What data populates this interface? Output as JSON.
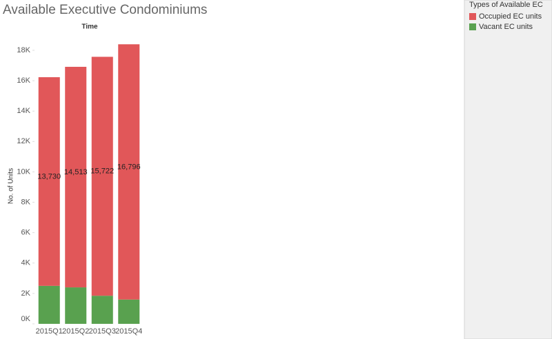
{
  "chart_data": {
    "type": "stacked_bar",
    "title": "Available Executive Condominiums",
    "header": "Time",
    "y_label": "No. of Units",
    "legend_title": "Types of Available EC",
    "categories": [
      "2015Q1",
      "2015Q2",
      "2015Q3",
      "2015Q4"
    ],
    "series": [
      {
        "name": "Vacant EC units",
        "color": "#59a14f",
        "values": [
          2500,
          2400,
          1850,
          1600
        ]
      },
      {
        "name": "Occupied EC units",
        "color": "#e15759",
        "values": [
          13730,
          14513,
          15722,
          16796
        ],
        "value_labels": [
          "13,730",
          "14,513",
          "15,722",
          "16,796"
        ]
      }
    ],
    "legend_order": [
      1,
      0
    ],
    "ylim": [
      0,
      18000
    ],
    "yticks": [
      {
        "value": 0,
        "label": "0K"
      },
      {
        "value": 2000,
        "label": "2K"
      },
      {
        "value": 4000,
        "label": "4K"
      },
      {
        "value": 6000,
        "label": "6K"
      },
      {
        "value": 8000,
        "label": "8K"
      },
      {
        "value": 10000,
        "label": "10K"
      },
      {
        "value": 12000,
        "label": "12K"
      },
      {
        "value": 14000,
        "label": "14K"
      },
      {
        "value": 16000,
        "label": "16K"
      },
      {
        "value": 18000,
        "label": "18K"
      }
    ],
    "grid": false
  }
}
